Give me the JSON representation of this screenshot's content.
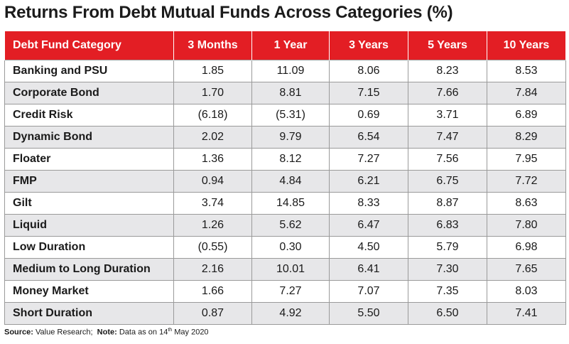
{
  "title": "Returns From Debt Mutual Funds Across Categories (%)",
  "colors": {
    "header_bg": "#e31e24",
    "header_text": "#ffffff",
    "stripe": "#e7e7e9"
  },
  "footnote": {
    "source_label": "Source:",
    "source_value": "Value Research;",
    "note_label": "Note:",
    "note_value_pre": "Data as on 14",
    "note_sup": "th",
    "note_value_post": " May 2020"
  },
  "chart_data": {
    "type": "table",
    "title": "Returns From Debt Mutual Funds Across Categories (%)",
    "columns": [
      "Debt Fund Category",
      "3 Months",
      "1 Year",
      "3 Years",
      "5 Years",
      "10 Years"
    ],
    "rows": [
      [
        "Banking and PSU",
        "1.85",
        "11.09",
        "8.06",
        "8.23",
        "8.53"
      ],
      [
        "Corporate Bond",
        "1.70",
        "8.81",
        "7.15",
        "7.66",
        "7.84"
      ],
      [
        "Credit Risk",
        "(6.18)",
        "(5.31)",
        "0.69",
        "3.71",
        "6.89"
      ],
      [
        "Dynamic Bond",
        "2.02",
        "9.79",
        "6.54",
        "7.47",
        "8.29"
      ],
      [
        "Floater",
        "1.36",
        "8.12",
        "7.27",
        "7.56",
        "7.95"
      ],
      [
        "FMP",
        "0.94",
        "4.84",
        "6.21",
        "6.75",
        "7.72"
      ],
      [
        "Gilt",
        "3.74",
        "14.85",
        "8.33",
        "8.87",
        "8.63"
      ],
      [
        "Liquid",
        "1.26",
        "5.62",
        "6.47",
        "6.83",
        "7.80"
      ],
      [
        "Low Duration",
        "(0.55)",
        "0.30",
        "4.50",
        "5.79",
        "6.98"
      ],
      [
        "Medium to Long Duration",
        "2.16",
        "10.01",
        "6.41",
        "7.30",
        "7.65"
      ],
      [
        "Money Market",
        "1.66",
        "7.27",
        "7.07",
        "7.35",
        "8.03"
      ],
      [
        "Short Duration",
        "0.87",
        "4.92",
        "5.50",
        "6.50",
        "7.41"
      ]
    ]
  }
}
